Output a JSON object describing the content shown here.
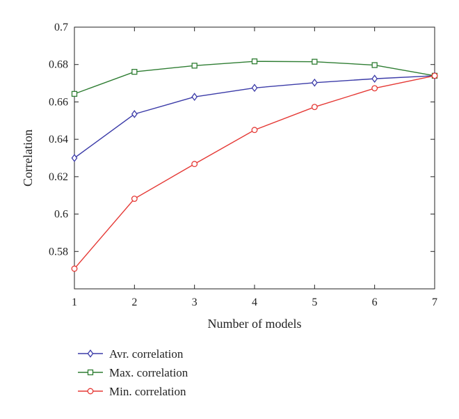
{
  "chart_data": {
    "type": "line",
    "xlabel": "Number of models",
    "ylabel": "Correlation",
    "x": [
      1,
      2,
      3,
      4,
      5,
      6,
      7
    ],
    "xlim": [
      1,
      7
    ],
    "ylim": [
      0.56,
      0.7
    ],
    "x_ticks": [
      "1",
      "2",
      "3",
      "4",
      "5",
      "6",
      "7"
    ],
    "y_ticks": [
      "0.58",
      "0.6",
      "0.62",
      "0.64",
      "0.66",
      "0.68",
      "0.7"
    ],
    "y_tick_values": [
      0.58,
      0.6,
      0.62,
      0.64,
      0.66,
      0.68,
      0.7
    ],
    "grid": false,
    "legend_position": "bottom-left",
    "series": [
      {
        "name": "Avr. correlation",
        "marker": "diamond",
        "color": "#3b3ba8",
        "values": [
          0.63,
          0.6535,
          0.6627,
          0.6675,
          0.6703,
          0.6724,
          0.674
        ]
      },
      {
        "name": "Max. correlation",
        "marker": "square",
        "color": "#2e7d32",
        "values": [
          0.6643,
          0.6761,
          0.6794,
          0.6817,
          0.6815,
          0.6797,
          0.674
        ]
      },
      {
        "name": "Min. correlation",
        "marker": "circle",
        "color": "#e53935",
        "values": [
          0.5708,
          0.6082,
          0.6268,
          0.645,
          0.6573,
          0.6673,
          0.674
        ]
      }
    ]
  }
}
